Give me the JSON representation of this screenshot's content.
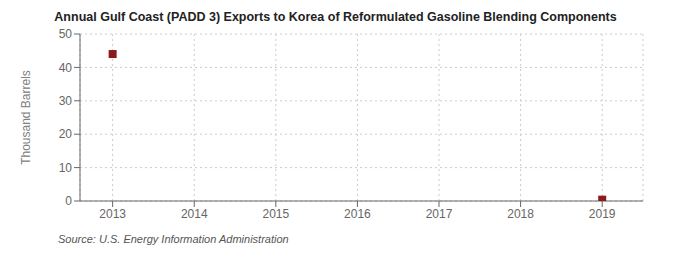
{
  "chart_data": {
    "type": "scatter",
    "title": "Annual Gulf Coast (PADD 3) Exports to Korea of Reformulated Gasoline Blending Components",
    "ylabel": "Thousand Barrels",
    "annotation": "Source: U.S. Energy Information Administration",
    "x": [
      2013,
      2019
    ],
    "values": [
      44,
      0.4
    ],
    "color": "#8b1a1a",
    "marker": "square",
    "xlim": [
      2012.6,
      2019.5
    ],
    "xticks": [
      2013,
      2014,
      2015,
      2016,
      2017,
      2018,
      2019
    ],
    "ylim": [
      0,
      50
    ],
    "yticks": [
      0,
      10,
      20,
      30,
      40,
      50
    ],
    "grid": true
  }
}
